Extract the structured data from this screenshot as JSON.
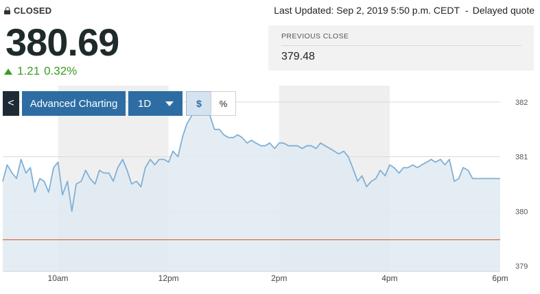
{
  "status": {
    "label": "CLOSED",
    "icon": "lock-icon"
  },
  "updated": {
    "text": "Last Updated: Sep 2, 2019 5:50 p.m. CEDT",
    "separator": "-",
    "delay": "Delayed quote"
  },
  "quote": {
    "price": "380.69",
    "change": "1.21",
    "change_pct": "0.32%",
    "up_color": "#3a9d23"
  },
  "previous_close": {
    "label": "PREVIOUS CLOSE",
    "value": "379.48"
  },
  "toolbar": {
    "back_label": "<",
    "advanced": "Advanced Charting",
    "range": "1D",
    "dollar": "$",
    "percent": "%"
  },
  "chart_data": {
    "type": "area",
    "x_ticks": [
      "10am",
      "12pm",
      "2pm",
      "4pm",
      "6pm"
    ],
    "y_ticks": [
      382,
      381,
      380,
      379
    ],
    "ylim": [
      378.9,
      382.3
    ],
    "previous_close": 379.48,
    "line_color": "#7fb0d6",
    "fill_color": "#e1eaf2",
    "prev_close_color": "#e0673c",
    "x": [
      9.0,
      9.08,
      9.17,
      9.25,
      9.33,
      9.42,
      9.5,
      9.58,
      9.67,
      9.75,
      9.83,
      9.92,
      10.0,
      10.08,
      10.17,
      10.25,
      10.33,
      10.42,
      10.5,
      10.58,
      10.67,
      10.75,
      10.83,
      10.92,
      11.0,
      11.08,
      11.17,
      11.25,
      11.33,
      11.42,
      11.5,
      11.58,
      11.67,
      11.75,
      11.83,
      11.92,
      12.0,
      12.08,
      12.17,
      12.25,
      12.33,
      12.42,
      12.5,
      12.58,
      12.67,
      12.75,
      12.83,
      12.92,
      13.0,
      13.08,
      13.17,
      13.25,
      13.33,
      13.42,
      13.5,
      13.58,
      13.67,
      13.75,
      13.83,
      13.92,
      14.0,
      14.08,
      14.17,
      14.25,
      14.33,
      14.42,
      14.5,
      14.58,
      14.67,
      14.75,
      14.83,
      14.92,
      15.0,
      15.08,
      15.17,
      15.25,
      15.33,
      15.42,
      15.5,
      15.58,
      15.67,
      15.75,
      15.83,
      15.92,
      16.0,
      16.08,
      16.17,
      16.25,
      16.33,
      16.42,
      16.5,
      16.58,
      16.67,
      16.75,
      16.83,
      16.92,
      17.0,
      17.08,
      17.17,
      17.25,
      17.33,
      17.42,
      17.5,
      17.58,
      17.67,
      17.75,
      17.83,
      17.92,
      18.0
    ],
    "y": [
      380.55,
      380.85,
      380.7,
      380.6,
      380.95,
      380.7,
      380.8,
      380.35,
      380.6,
      380.55,
      380.35,
      380.8,
      380.9,
      380.3,
      380.55,
      380.0,
      380.5,
      380.55,
      380.75,
      380.6,
      380.5,
      380.75,
      380.7,
      380.7,
      380.55,
      380.8,
      380.95,
      380.75,
      380.5,
      380.55,
      380.45,
      380.8,
      380.95,
      380.85,
      380.95,
      380.95,
      380.9,
      381.1,
      381.0,
      381.35,
      381.6,
      381.75,
      381.85,
      381.95,
      381.85,
      381.75,
      381.5,
      381.5,
      381.4,
      381.35,
      381.35,
      381.4,
      381.35,
      381.25,
      381.3,
      381.25,
      381.2,
      381.2,
      381.25,
      381.15,
      381.25,
      381.25,
      381.2,
      381.2,
      381.2,
      381.15,
      381.2,
      381.2,
      381.15,
      381.25,
      381.2,
      381.15,
      381.1,
      381.05,
      381.1,
      381.0,
      380.8,
      380.55,
      380.65,
      380.45,
      380.55,
      380.6,
      380.75,
      380.65,
      380.85,
      380.8,
      380.7,
      380.8,
      380.8,
      380.85,
      380.8,
      380.85,
      380.9,
      380.95,
      380.9,
      380.95,
      380.85,
      380.95,
      380.55,
      380.6,
      380.8,
      380.75,
      380.6,
      380.6,
      380.6,
      380.6,
      380.6,
      380.6,
      380.6
    ]
  }
}
